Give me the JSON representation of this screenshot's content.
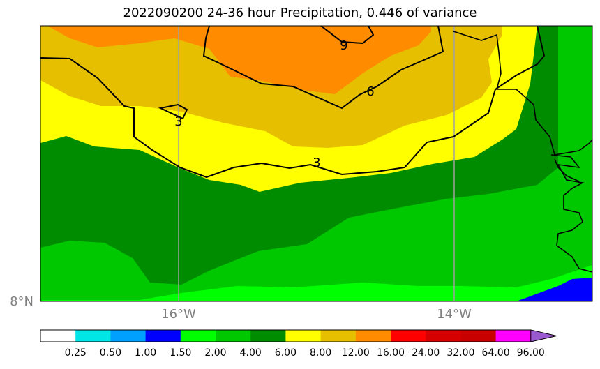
{
  "title": "2022090200 24-36 hour Precipitation, 0.446 of variance",
  "map": {
    "lon_labels": [
      "16°W",
      "14°W"
    ],
    "lat_labels": [
      "8°N"
    ],
    "contour_labels": [
      "9",
      "6",
      "3",
      "3"
    ]
  },
  "colorbar": {
    "colors": [
      "#ffffff",
      "#00e5e5",
      "#00a0ff",
      "#0000ff",
      "#00ff00",
      "#00c800",
      "#008c00",
      "#ffff00",
      "#e6c000",
      "#ff8c00",
      "#ff0000",
      "#d70000",
      "#c80000",
      "#ff00ff",
      "#9b59d0"
    ],
    "labels": [
      "0.25",
      "0.50",
      "1.00",
      "1.50",
      "2.00",
      "4.00",
      "6.00",
      "8.00",
      "12.00",
      "16.00",
      "24.00",
      "32.00",
      "64.00",
      "96.00"
    ]
  }
}
